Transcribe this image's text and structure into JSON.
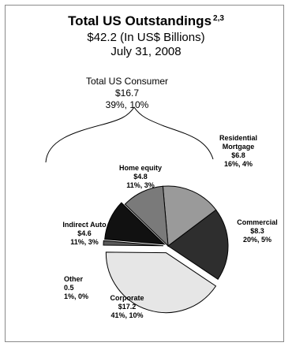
{
  "title": "Total US Outstandings",
  "title_sup": "2,3",
  "subtitle_amount": "$42.2 (In US$ Billions)",
  "subtitle_date": "July 31, 2008",
  "consumer_group": {
    "label": "Total US Consumer",
    "value": "$16.7",
    "pct": "39%, 10%"
  },
  "chart_data": {
    "type": "pie",
    "title": "Total US Outstandings",
    "units": "US$ Billions",
    "total": 42.2,
    "slices": [
      {
        "name": "Residential Mortgage",
        "value": 6.8,
        "value_label": "$6.8",
        "pct_label": "16%, 4%",
        "color": "#9a9a9a",
        "label_lines": [
          "Residential",
          "Mortgage",
          "$6.8",
          "16%, 4%"
        ]
      },
      {
        "name": "Commercial",
        "value": 8.3,
        "value_label": "$8.3",
        "pct_label": "20%, 5%",
        "color": "#2e2e2e",
        "label_lines": [
          "Commercial",
          "$8.3",
          "20%, 5%"
        ]
      },
      {
        "name": "Corporate",
        "value": 17.2,
        "value_label": "$17.2",
        "pct_label": "41%, 10%",
        "color": "#e6e6e6",
        "label_lines": [
          "Corporate",
          "$17.2",
          "41%, 10%"
        ]
      },
      {
        "name": "Other",
        "value": 0.5,
        "value_label": "0.5",
        "pct_label": "1%, 0%",
        "color": "#5a5a5a",
        "label_lines": [
          "Other",
          "0.5",
          "1%, 0%"
        ]
      },
      {
        "name": "Indirect Auto",
        "value": 4.6,
        "value_label": "$4.6",
        "pct_label": "11%, 3%",
        "color": "#111111",
        "label_lines": [
          "Indirect Auto",
          "$4.6",
          "11%, 3%"
        ]
      },
      {
        "name": "Home equity",
        "value": 4.8,
        "value_label": "$4.8",
        "pct_label": "11%, 3%",
        "color": "#7a7a7a",
        "label_lines": [
          "Home equity",
          "$4.8",
          "11%, 3%"
        ]
      }
    ]
  }
}
